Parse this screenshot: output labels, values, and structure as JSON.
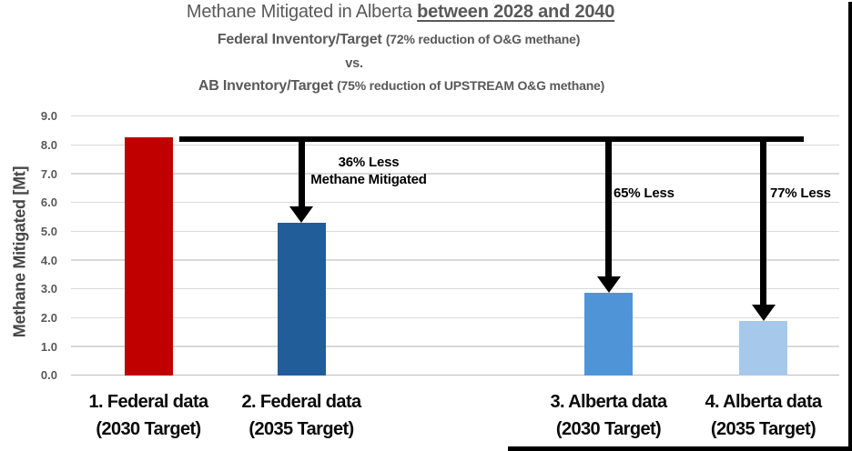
{
  "title": {
    "line1_regular": "Methane Mitigated in Alberta ",
    "line1_bold_underline": "between 2028 and 2040",
    "line2_main": "Federal Inventory/Target ",
    "line2_paren": "(72% reduction of O&G methane)",
    "vs": "vs.",
    "line4_main": "AB Inventory/Target ",
    "line4_paren": "(75% reduction of UPSTREAM O&G methane)"
  },
  "chart_data": {
    "type": "bar",
    "title": "Methane Mitigated in Alberta between 2028 and 2040",
    "subtitles": [
      "Federal Inventory/Target (72% reduction of O&G methane)",
      "vs.",
      "AB Inventory/Target (75% reduction of UPSTREAM O&G methane)"
    ],
    "ylabel": "Methane Mitigated [Mt]",
    "ylim": [
      0,
      9
    ],
    "ytick_step": 1.0,
    "ytick_labels": [
      "0.0",
      "1.0",
      "2.0",
      "3.0",
      "4.0",
      "5.0",
      "6.0",
      "7.0",
      "8.0",
      "9.0"
    ],
    "grid": true,
    "legend": "none",
    "categories": [
      {
        "line1": "1. Federal data",
        "line2": "(2030 Target)"
      },
      {
        "line1": "2. Federal data",
        "line2": "(2035 Target)"
      },
      {
        "line1": "3. Alberta data",
        "line2": "(2030 Target)"
      },
      {
        "line1": "4. Alberta data",
        "line2": "(2035 Target)"
      }
    ],
    "values": [
      8.25,
      5.3,
      2.85,
      1.9
    ],
    "bar_colors": [
      "#C00000",
      "#215E99",
      "#4F94D7",
      "#A6C8EB"
    ],
    "reference_line": {
      "value": 8.2,
      "color": "#000000"
    },
    "annotations": [
      {
        "target_bar": 1,
        "lines": [
          "36% Less",
          "Methane Mitigated"
        ]
      },
      {
        "target_bar": 2,
        "lines": [
          "65% Less"
        ]
      },
      {
        "target_bar": 3,
        "lines": [
          "77% Less"
        ]
      }
    ]
  },
  "colors": {
    "grid": "#D9D9D9",
    "baseline": "#BFBFBF",
    "title_text": "#595959",
    "axis_text": "#595959",
    "category_text": "#0A0A0A",
    "annotation_text": "#000000"
  }
}
